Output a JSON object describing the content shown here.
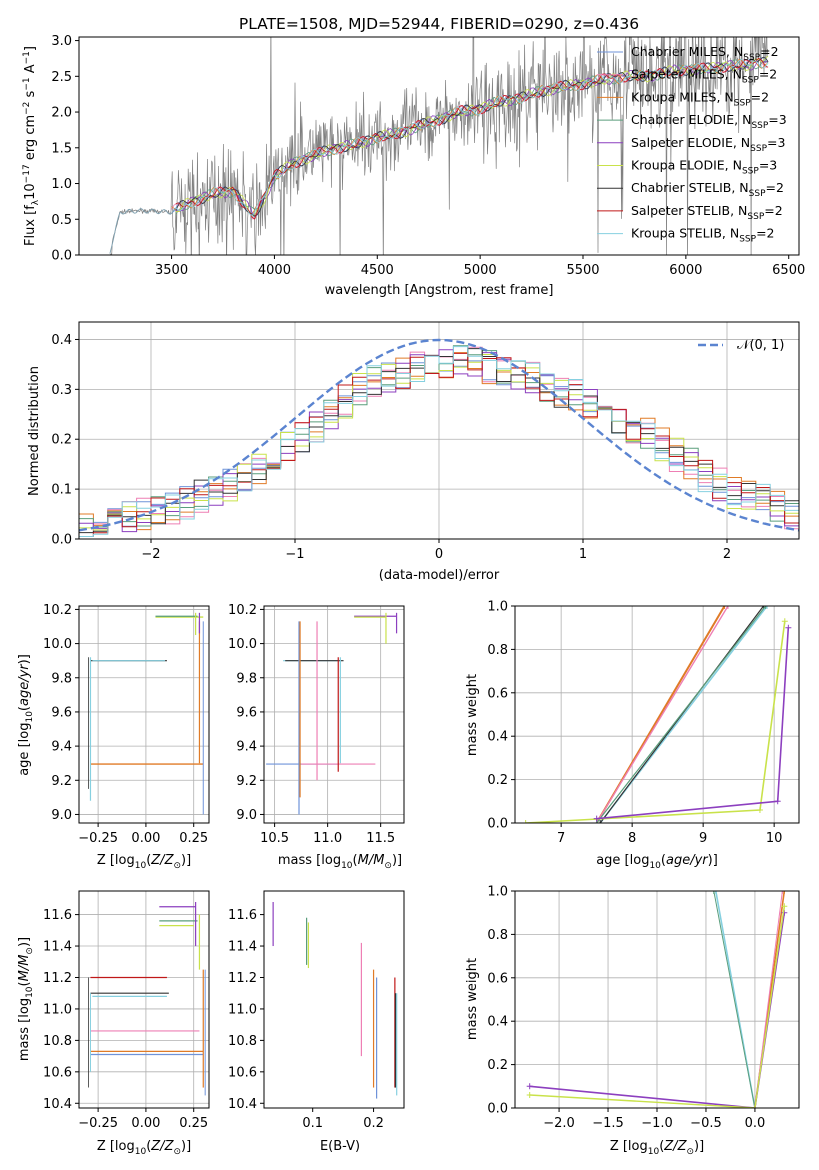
{
  "figure_title": "PLATE=1508, MJD=52944, FIBERID=0290, z=0.436",
  "colors": {
    "Chabrier MILES": "#6f93d9",
    "Salpeter MILES": "#ee7fb4",
    "Kroupa MILES": "#e07b27",
    "Chabrier ELODIE": "#5a9e7c",
    "Salpeter ELODIE": "#8c3fbf",
    "Kroupa ELODIE": "#c9e24a",
    "Chabrier STELIB": "#333333",
    "Salpeter STELIB": "#c01818",
    "Kroupa STELIB": "#86d0e0",
    "data": "#808080",
    "normal": "#5b84d0"
  },
  "chart_data": [
    {
      "type": "line",
      "title": "PLATE=1508, MJD=52944, FIBERID=0290, z=0.436",
      "xlabel": "wavelength [Angstrom, rest frame]",
      "ylabel": "Flux [f_λ 10^-17 erg cm^-2 s^-1 A^-1]",
      "xlim": [
        3050,
        6550
      ],
      "ylim": [
        0,
        3.05
      ],
      "xticks": [
        3500,
        4000,
        4500,
        5000,
        5500,
        6000,
        6500
      ],
      "yticks": [
        0.0,
        0.5,
        1.0,
        1.5,
        2.0,
        2.5,
        3.0
      ],
      "grid": false,
      "legend_position": "lower-right",
      "legend": [
        "Chabrier MILES, N_SSP=2",
        "Salpeter MILES, N_SSP=2",
        "Kroupa MILES, N_SSP=2",
        "Chabrier ELODIE, N_SSP=3",
        "Salpeter ELODIE, N_SSP=3",
        "Kroupa ELODIE, N_SSP=3",
        "Chabrier STELIB, N_SSP=2",
        "Salpeter STELIB, N_SSP=2",
        "Kroupa STELIB, N_SSP=2"
      ],
      "model_continuum": {
        "x": [
          3200,
          3250,
          3350,
          3500,
          3600,
          3700,
          3800,
          3900,
          3950,
          4000,
          4100,
          4200,
          4300,
          4400,
          4500,
          4600,
          4700,
          4800,
          4900,
          5000,
          5100,
          5200,
          5300,
          5400,
          5500,
          5600,
          5700,
          5800,
          5900,
          6000,
          6100,
          6200,
          6300,
          6350
        ],
        "y": [
          0.05,
          0.6,
          0.62,
          0.6,
          0.75,
          0.85,
          0.9,
          0.55,
          0.8,
          1.1,
          1.3,
          1.4,
          1.5,
          1.55,
          1.65,
          1.7,
          1.8,
          1.9,
          2.0,
          2.05,
          2.15,
          2.2,
          2.3,
          2.35,
          2.4,
          2.45,
          2.5,
          2.5,
          2.55,
          2.6,
          2.6,
          2.65,
          2.65,
          2.7
        ]
      }
    },
    {
      "type": "line",
      "xlabel": "(data-model)/error",
      "ylabel": "Normed distribution",
      "xlim": [
        -2.5,
        2.5
      ],
      "ylim": [
        0,
        0.435
      ],
      "xticks": [
        -2,
        -1,
        0,
        1,
        2
      ],
      "yticks": [
        0.0,
        0.1,
        0.2,
        0.3,
        0.4
      ],
      "grid": true,
      "legend_position": "top-right",
      "legend": [
        "𝒩(0, 1)"
      ],
      "histogram_shape": {
        "x": [
          -2.5,
          -2.0,
          -1.5,
          -1.0,
          -0.5,
          0.0,
          0.5,
          1.0,
          1.5,
          2.0,
          2.5
        ],
        "y": [
          0.02,
          0.05,
          0.1,
          0.19,
          0.31,
          0.36,
          0.34,
          0.28,
          0.2,
          0.1,
          0.05
        ]
      }
    },
    {
      "type": "scatter",
      "xlabel": "Z [log10(Z/Z⊙)]",
      "ylabel": "age  [log10(age/yr)]",
      "xlim": [
        -0.35,
        0.33
      ],
      "ylim": [
        8.95,
        10.22
      ],
      "xticks": [
        -0.25,
        0.0,
        0.25
      ],
      "yticks": [
        9.0,
        9.2,
        9.4,
        9.6,
        9.8,
        10.0,
        10.2
      ],
      "grid": true
    },
    {
      "type": "scatter",
      "xlabel": "mass [log10(M/M⊙)]",
      "xlim": [
        10.4,
        11.72
      ],
      "ylim": [
        8.95,
        10.22
      ],
      "xticks": [
        10.5,
        11.0,
        11.5
      ],
      "yticks": [
        9.0,
        9.2,
        9.4,
        9.6,
        9.8,
        10.0,
        10.2
      ],
      "grid": true
    },
    {
      "type": "line",
      "xlabel": "age  [log10(age/yr)]",
      "ylabel": "mass weight",
      "xlim": [
        6.35,
        10.35
      ],
      "ylim": [
        0,
        1
      ],
      "xticks": [
        7,
        8,
        9,
        10
      ],
      "yticks": [
        0.0,
        0.2,
        0.4,
        0.6,
        0.8,
        1.0
      ],
      "grid": true
    },
    {
      "type": "scatter",
      "xlabel": "Z [log10(Z/Z⊙)]",
      "ylabel": "mass [log10(M/M⊙)]",
      "xlim": [
        -0.35,
        0.33
      ],
      "ylim": [
        10.37,
        11.75
      ],
      "xticks": [
        -0.25,
        0.0,
        0.25
      ],
      "yticks": [
        10.4,
        10.6,
        10.8,
        11.0,
        11.2,
        11.4,
        11.6
      ],
      "grid": true
    },
    {
      "type": "scatter",
      "xlabel": "E(B-V)",
      "xlim": [
        0.02,
        0.25
      ],
      "ylim": [
        10.37,
        11.75
      ],
      "xticks": [
        0.1,
        0.2
      ],
      "yticks": [
        10.4,
        10.6,
        10.8,
        11.0,
        11.2,
        11.4,
        11.6
      ],
      "grid": false
    },
    {
      "type": "line",
      "xlabel": "Z [log10(Z/Z⊙)]",
      "ylabel": "mass weight",
      "xlim": [
        -2.45,
        0.45
      ],
      "ylim": [
        0,
        1
      ],
      "xticks": [
        -2.0,
        -1.5,
        -1.0,
        -0.5,
        0.0
      ],
      "yticks": [
        0.0,
        0.2,
        0.4,
        0.6,
        0.8,
        1.0
      ],
      "grid": true
    }
  ]
}
